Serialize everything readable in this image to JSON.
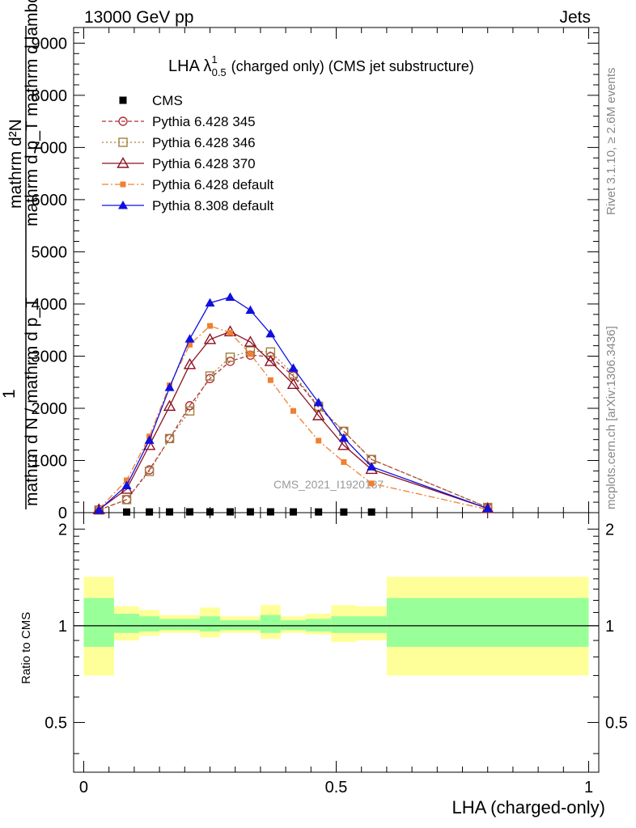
{
  "header": {
    "left": "13000 GeV pp",
    "right": "Jets"
  },
  "side_labels": {
    "rivet": "Rivet 3.1.10, ≥ 2.6M events",
    "mcplots": "mcplots.cern.ch [arXiv:1306.3436]"
  },
  "watermark": "CMS_2021_I1920187",
  "main_ylabel": {
    "numerator": "mathrm d²N",
    "numerator_2": "mathrm d p_T mathrm d lambda",
    "one": "1",
    "denominator": "mathrm d N / mathrm d p_T"
  },
  "ratio_ylabel": "Ratio to CMS",
  "xlabel": "LHA (charged-only)",
  "colors": {
    "cms": "#000000",
    "p345": "#b0303a",
    "p346": "#a08040",
    "p370": "#8b1020",
    "p6def": "#f08030",
    "p8def": "#1010e0",
    "band_inner": "#99ff99",
    "band_outer": "#ffff99"
  },
  "chart_data": [
    {
      "type": "line",
      "title": "LHA λ¹₀.₅ (charged only) (CMS jet substructure)",
      "title_parts": {
        "main": "LHA λ",
        "sup": "1",
        "sub": "0.5",
        "rest": "(charged only) (CMS jet substructure)"
      },
      "xlabel": "LHA (charged-only)",
      "ylabel": "1 / (mathrm d N / mathrm d p_T) · mathrm d²N / (mathrm d p_T mathrm d lambda)",
      "xlim": [
        -0.02,
        1.02
      ],
      "ylim": [
        0,
        9300
      ],
      "yticks": [
        {
          "v": 0,
          "t": "0"
        },
        {
          "v": 1000,
          "t": "1000"
        },
        {
          "v": 2000,
          "t": "2000"
        },
        {
          "v": 3000,
          "t": "3000"
        },
        {
          "v": 4000,
          "t": "4000"
        },
        {
          "v": 5000,
          "t": "5000"
        },
        {
          "v": 6000,
          "t": "6000"
        },
        {
          "v": 7000,
          "t": "7000"
        },
        {
          "v": 8000,
          "t": "8000"
        },
        {
          "v": 9000,
          "t": "9000"
        }
      ],
      "legend_position": "top-left",
      "x": [
        0.03,
        0.085,
        0.13,
        0.17,
        0.21,
        0.25,
        0.29,
        0.33,
        0.37,
        0.415,
        0.465,
        0.515,
        0.57,
        0.8
      ],
      "series": [
        {
          "name": "CMS",
          "key": "cms",
          "marker": "square",
          "line": "none",
          "x": [
            0.085,
            0.13,
            0.17,
            0.21,
            0.25,
            0.29,
            0.33,
            0.37,
            0.415,
            0.465,
            0.515,
            0.57
          ],
          "values": [
            12,
            13,
            14,
            15,
            15,
            15,
            15,
            15,
            14,
            13,
            12,
            12
          ]
        },
        {
          "name": "Pythia 6.428 345",
          "key": "p345",
          "marker": "circle-open",
          "line": "dashed",
          "values": [
            50,
            250,
            820,
            1420,
            2050,
            2570,
            2900,
            3020,
            2990,
            2620,
            2020,
            1560,
            1020,
            100
          ]
        },
        {
          "name": "Pythia 6.428 346",
          "key": "p346",
          "marker": "square-open",
          "line": "dotted",
          "values": [
            50,
            250,
            790,
            1420,
            1950,
            2620,
            2980,
            3100,
            3080,
            2660,
            2040,
            1560,
            1020,
            100
          ]
        },
        {
          "name": "Pythia 6.428 370",
          "key": "p370",
          "marker": "triangle-open",
          "line": "solid",
          "values": [
            60,
            450,
            1290,
            2040,
            2840,
            3320,
            3470,
            3270,
            2900,
            2460,
            1860,
            1290,
            830,
            80
          ]
        },
        {
          "name": "Pythia 6.428 default",
          "key": "p6def",
          "marker": "square-filled",
          "line": "dashdot",
          "values": [
            70,
            620,
            1460,
            2440,
            3220,
            3580,
            3450,
            3040,
            2540,
            1950,
            1380,
            970,
            560,
            60
          ]
        },
        {
          "name": "Pythia 8.308 default",
          "key": "p8def",
          "marker": "triangle-filled",
          "line": "solid",
          "values": [
            50,
            520,
            1390,
            2400,
            3330,
            4020,
            4130,
            3880,
            3430,
            2770,
            2110,
            1430,
            880,
            80
          ]
        }
      ]
    },
    {
      "type": "area",
      "ylabel": "Ratio to CMS",
      "xlabel": "LHA (charged-only)",
      "xlim": [
        -0.02,
        1.02
      ],
      "ylim": [
        0.35,
        2.25
      ],
      "log_y": true,
      "yticks": [
        {
          "v": 0.5,
          "t": "0.5"
        },
        {
          "v": 1,
          "t": "1"
        },
        {
          "v": 2,
          "t": "2"
        }
      ],
      "xticks": [
        {
          "v": 0,
          "t": "0"
        },
        {
          "v": 0.5,
          "t": "0.5"
        },
        {
          "v": 1,
          "t": "1"
        }
      ],
      "reference": 1,
      "bins": [
        {
          "x0": 0.0,
          "x1": 0.06,
          "inner": [
            0.86,
            1.22
          ],
          "outer": [
            0.7,
            1.42
          ]
        },
        {
          "x0": 0.06,
          "x1": 0.11,
          "inner": [
            0.95,
            1.09
          ],
          "outer": [
            0.9,
            1.15
          ]
        },
        {
          "x0": 0.11,
          "x1": 0.15,
          "inner": [
            0.96,
            1.07
          ],
          "outer": [
            0.93,
            1.12
          ]
        },
        {
          "x0": 0.15,
          "x1": 0.19,
          "inner": [
            0.97,
            1.05
          ],
          "outer": [
            0.95,
            1.08
          ]
        },
        {
          "x0": 0.19,
          "x1": 0.23,
          "inner": [
            0.97,
            1.05
          ],
          "outer": [
            0.95,
            1.08
          ]
        },
        {
          "x0": 0.23,
          "x1": 0.27,
          "inner": [
            0.96,
            1.07
          ],
          "outer": [
            0.92,
            1.14
          ]
        },
        {
          "x0": 0.27,
          "x1": 0.31,
          "inner": [
            0.97,
            1.04
          ],
          "outer": [
            0.95,
            1.07
          ]
        },
        {
          "x0": 0.31,
          "x1": 0.35,
          "inner": [
            0.97,
            1.04
          ],
          "outer": [
            0.95,
            1.07
          ]
        },
        {
          "x0": 0.35,
          "x1": 0.39,
          "inner": [
            0.95,
            1.08
          ],
          "outer": [
            0.91,
            1.16
          ]
        },
        {
          "x0": 0.39,
          "x1": 0.44,
          "inner": [
            0.97,
            1.04
          ],
          "outer": [
            0.95,
            1.07
          ]
        },
        {
          "x0": 0.44,
          "x1": 0.49,
          "inner": [
            0.96,
            1.05
          ],
          "outer": [
            0.94,
            1.09
          ]
        },
        {
          "x0": 0.49,
          "x1": 0.54,
          "inner": [
            0.95,
            1.07
          ],
          "outer": [
            0.89,
            1.16
          ]
        },
        {
          "x0": 0.54,
          "x1": 0.6,
          "inner": [
            0.95,
            1.07
          ],
          "outer": [
            0.9,
            1.15
          ]
        },
        {
          "x0": 0.6,
          "x1": 1.0,
          "inner": [
            0.86,
            1.22
          ],
          "outer": [
            0.7,
            1.42
          ]
        }
      ]
    }
  ]
}
